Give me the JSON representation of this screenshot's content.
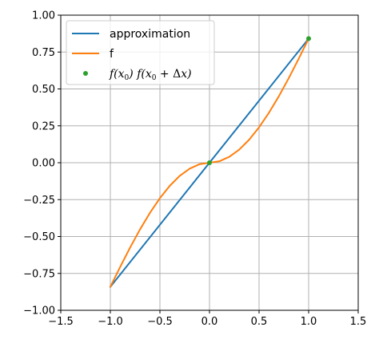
{
  "chart_data": {
    "type": "line",
    "title": "",
    "xlabel": "",
    "ylabel": "",
    "xlim": [
      -1.5,
      1.5
    ],
    "ylim": [
      -1.0,
      1.0
    ],
    "grid": true,
    "legend_position": "top-left",
    "x_ticks": [
      "−1.5",
      "−1.0",
      "−0.5",
      "0.0",
      "0.5",
      "1.0",
      "1.5"
    ],
    "y_ticks": [
      "−1.00",
      "−0.75",
      "−0.50",
      "−0.25",
      "0.00",
      "0.25",
      "0.50",
      "0.75",
      "1.00"
    ],
    "series": [
      {
        "name": "approximation",
        "kind": "line",
        "color": "#1f77b4",
        "x": [
          -1.0,
          1.0
        ],
        "y": [
          -0.841,
          0.841
        ]
      },
      {
        "name": "f",
        "kind": "line",
        "color": "#ff7f0e",
        "x": [
          -1.0,
          -0.9,
          -0.8,
          -0.7,
          -0.6,
          -0.5,
          -0.4,
          -0.3,
          -0.2,
          -0.1,
          0.0,
          0.1,
          0.2,
          0.3,
          0.4,
          0.5,
          0.6,
          0.7,
          0.8,
          0.9,
          1.0
        ],
        "y": [
          -0.841,
          -0.705,
          -0.574,
          -0.451,
          -0.339,
          -0.24,
          -0.156,
          -0.089,
          -0.04,
          -0.01,
          0.0,
          0.01,
          0.04,
          0.089,
          0.156,
          0.24,
          0.339,
          0.451,
          0.574,
          0.705,
          0.841
        ]
      },
      {
        "name": "f(x0) f(x0+Δx)",
        "kind": "scatter",
        "color": "#2ca02c",
        "x": [
          0.0,
          1.0
        ],
        "y": [
          0.0,
          0.841
        ]
      }
    ]
  }
}
